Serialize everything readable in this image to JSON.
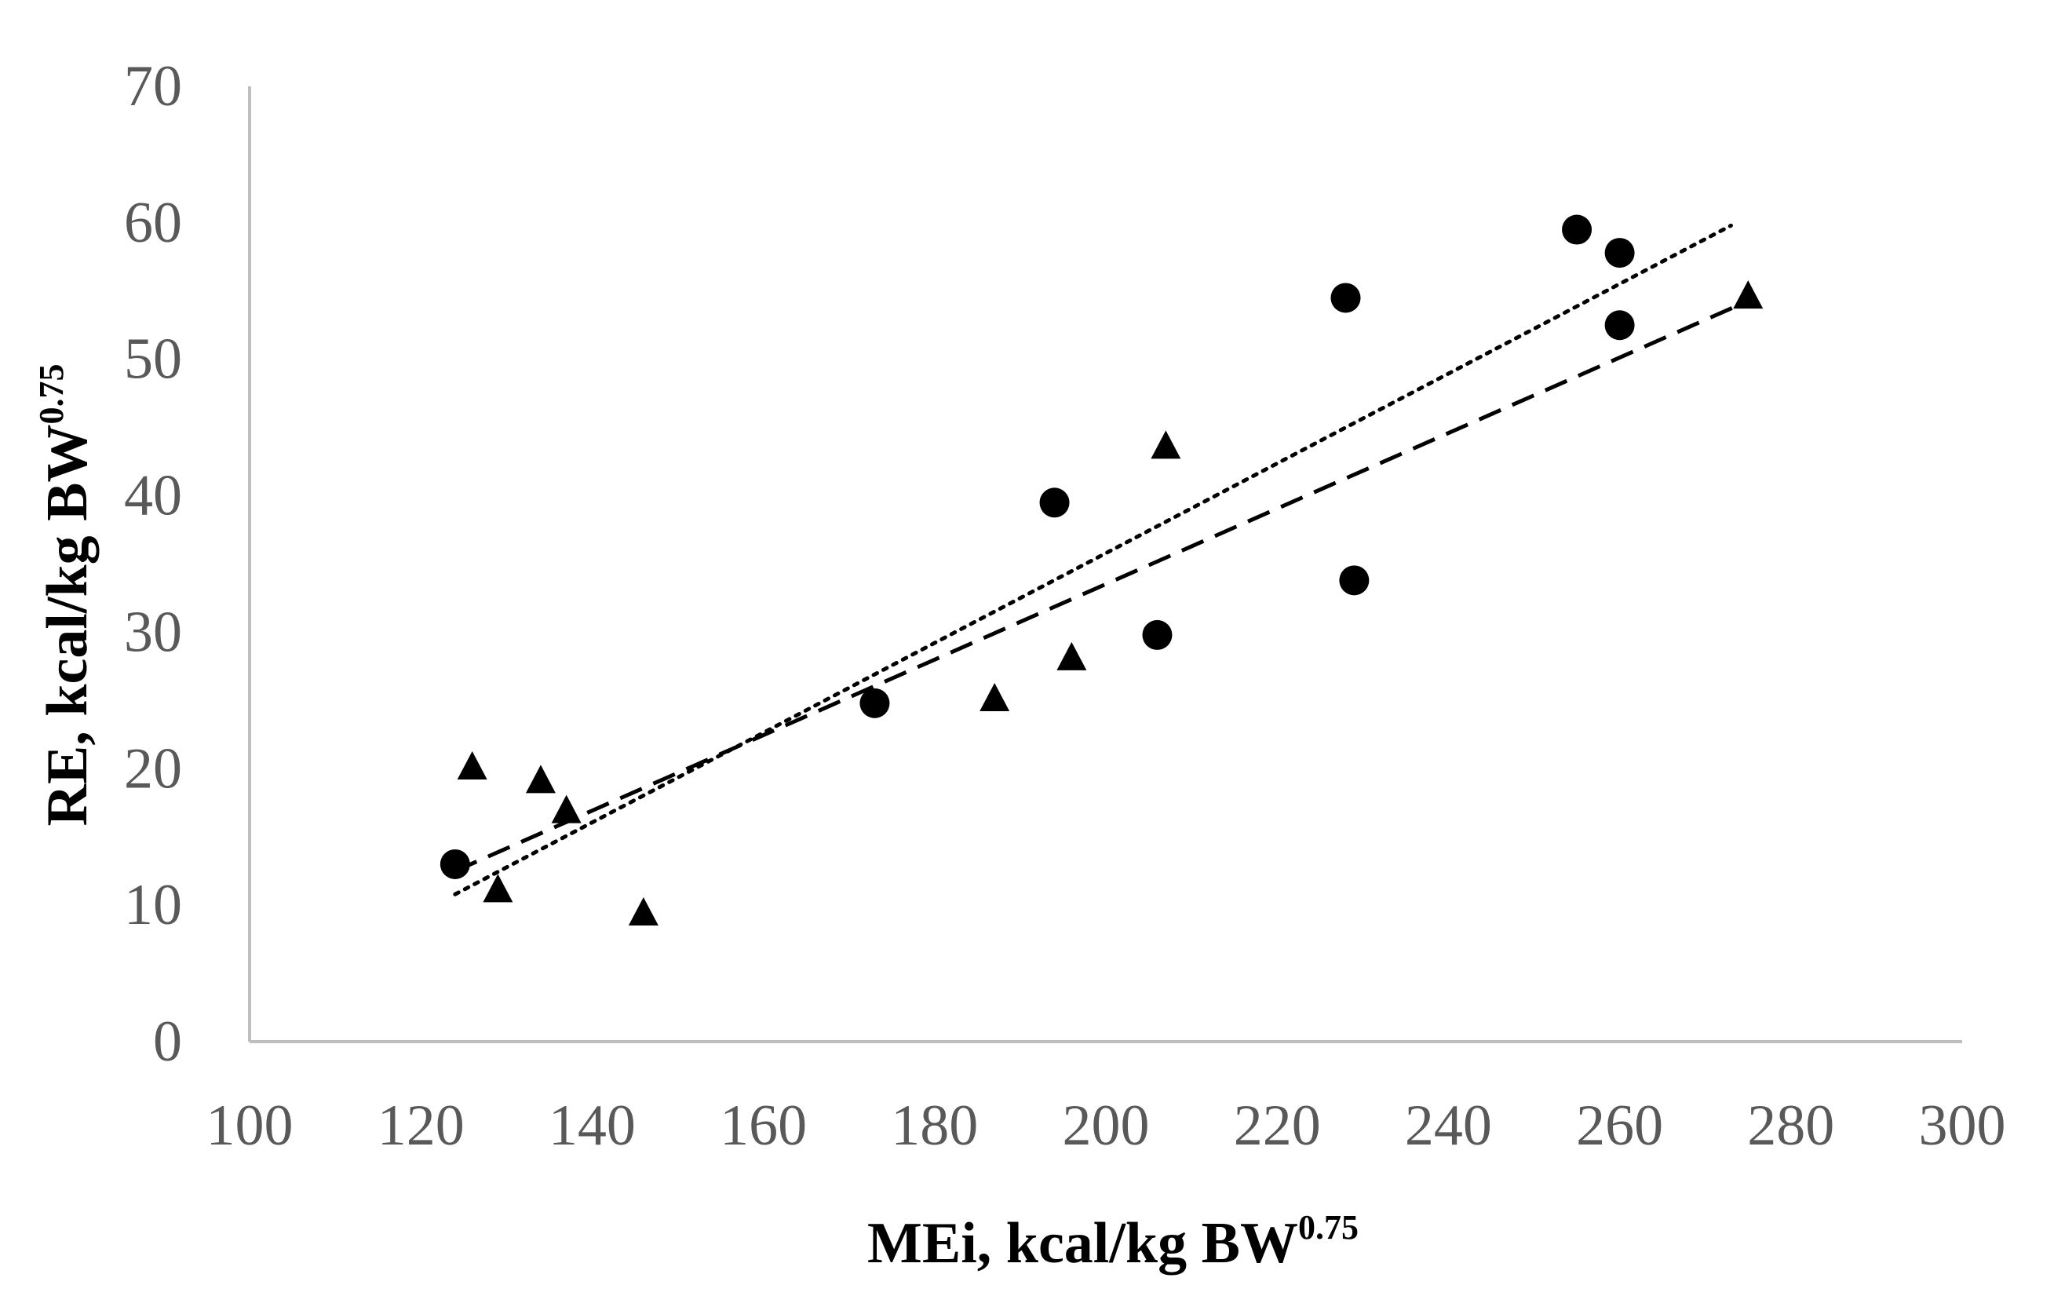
{
  "chart_data": {
    "type": "scatter",
    "xlabel": "MEi, kcal/kg BW",
    "xlabel_sup": "0.75",
    "ylabel": "RE, kcal/kg BW",
    "ylabel_sup": "0.75",
    "xlim": [
      100,
      300
    ],
    "ylim": [
      0,
      70
    ],
    "xticks": [
      "100",
      "120",
      "140",
      "160",
      "180",
      "200",
      "220",
      "240",
      "260",
      "280",
      "300"
    ],
    "yticks": [
      "0",
      "10",
      "20",
      "30",
      "40",
      "50",
      "60",
      "70"
    ],
    "grid": false,
    "legend": "none",
    "series": [
      {
        "marker": "circle",
        "color": "#000000",
        "points": [
          [
            124,
            13
          ],
          [
            173,
            24.8
          ],
          [
            194,
            39.5
          ],
          [
            206,
            29.8
          ],
          [
            228,
            54.5
          ],
          [
            229,
            33.8
          ],
          [
            255,
            59.5
          ],
          [
            260,
            57.8
          ],
          [
            260,
            52.5
          ]
        ],
        "trendline": {
          "style": "dotted",
          "from": [
            124,
            10.8
          ],
          "to": [
            273,
            59.8
          ]
        }
      },
      {
        "marker": "triangle",
        "color": "#000000",
        "points": [
          [
            126,
            20
          ],
          [
            129,
            11
          ],
          [
            134,
            19
          ],
          [
            137,
            16.8
          ],
          [
            146,
            9.3
          ],
          [
            187,
            25
          ],
          [
            196,
            28
          ],
          [
            207,
            43.5
          ],
          [
            275,
            54.5
          ]
        ],
        "trendline": {
          "style": "dashed",
          "from": [
            124,
            12.5
          ],
          "to": [
            274,
            54
          ]
        }
      }
    ]
  }
}
